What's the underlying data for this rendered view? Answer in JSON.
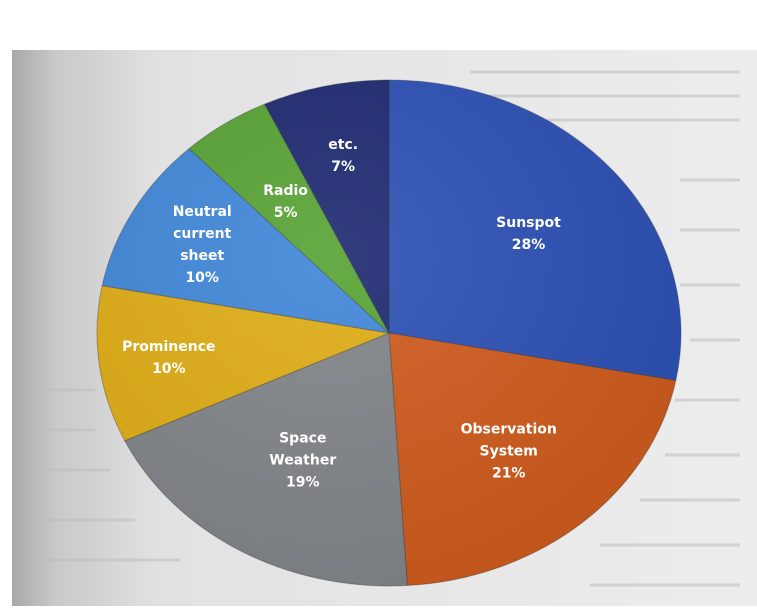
{
  "chart_data": {
    "type": "pie",
    "title": "",
    "slices": [
      {
        "label": [
          "Sunspot"
        ],
        "value": 28,
        "display": "28%",
        "color": "#2a4fb4"
      },
      {
        "label": [
          "Observation",
          "System"
        ],
        "value": 21,
        "display": "21%",
        "color": "#cf5a1b"
      },
      {
        "label": [
          "Space",
          "Weather"
        ],
        "value": 19,
        "display": "19%",
        "color": "#808488"
      },
      {
        "label": [
          "Prominence"
        ],
        "value": 10,
        "display": "10%",
        "color": "#dfac13"
      },
      {
        "label": [
          "Neutral",
          "current",
          "sheet"
        ],
        "value": 10,
        "display": "10%",
        "color": "#3f86d8"
      },
      {
        "label": [
          "Radio"
        ],
        "value": 5,
        "display": "5%",
        "color": "#56a232"
      },
      {
        "label": [
          "etc."
        ],
        "value": 7,
        "display": "7%",
        "color": "#1c2870"
      }
    ],
    "start_angle_deg": 0,
    "direction": "clockwise",
    "legend": "none",
    "labels_inside": true
  }
}
